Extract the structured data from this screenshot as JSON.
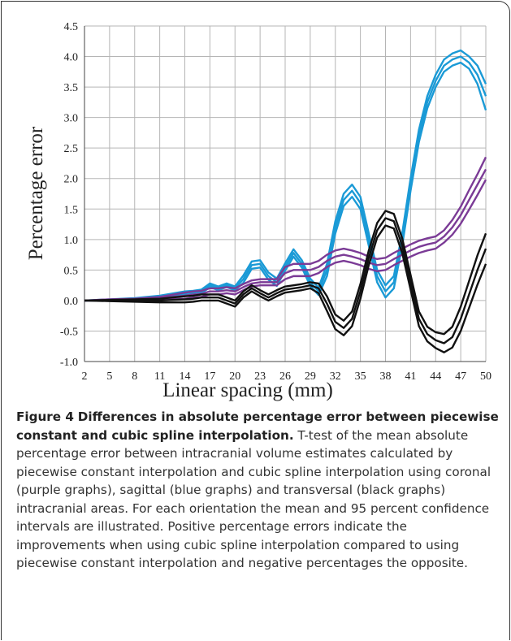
{
  "chart_data": {
    "type": "line",
    "xlabel": "Linear spacing (mm)",
    "ylabel": "Percentage error",
    "x": [
      2,
      5,
      8,
      11,
      14,
      15,
      16,
      17,
      18,
      19,
      20,
      21,
      22,
      23,
      24,
      25,
      26,
      27,
      28,
      29,
      30,
      31,
      32,
      33,
      34,
      35,
      36,
      37,
      38,
      39,
      40,
      41,
      42,
      43,
      44,
      45,
      46,
      47,
      48,
      49,
      50
    ],
    "xlim": [
      2,
      50
    ],
    "xticks": [
      2,
      5,
      8,
      11,
      14,
      17,
      20,
      23,
      26,
      29,
      32,
      35,
      38,
      41,
      44,
      47,
      50
    ],
    "ylim": [
      -1,
      4.5
    ],
    "yticks": [
      {
        "value": -1,
        "label": "-1.0"
      },
      -0.5,
      {
        "value": 0,
        "label": "0.0"
      },
      0.5,
      {
        "value": 1,
        "label": "1.0"
      },
      1.5,
      {
        "value": 2,
        "label": "2.0"
      },
      2.5,
      {
        "value": 3,
        "label": "3.0"
      },
      3.5,
      {
        "value": 4,
        "label": "4.0"
      },
      4.5
    ],
    "grid": true,
    "series": [
      {
        "color": "#1a9ad6",
        "values": [
          0,
          0.02,
          0.04,
          0.08,
          0.15,
          0.16,
          0.18,
          0.28,
          0.23,
          0.28,
          0.23,
          0.41,
          0.64,
          0.66,
          0.46,
          0.36,
          0.61,
          0.84,
          0.66,
          0.36,
          0.21,
          0.6,
          1.3,
          1.75,
          1.9,
          1.7,
          1.1,
          0.5,
          0.25,
          0.4,
          1.1,
          2.0,
          2.8,
          3.35,
          3.7,
          3.95,
          4.05,
          4.1,
          4.0,
          3.85,
          3.55
        ]
      },
      {
        "color": "#1a9ad6",
        "values": [
          0,
          0.01,
          0.03,
          0.06,
          0.12,
          0.13,
          0.15,
          0.25,
          0.2,
          0.25,
          0.2,
          0.35,
          0.58,
          0.6,
          0.4,
          0.3,
          0.55,
          0.78,
          0.6,
          0.3,
          0.15,
          0.5,
          1.2,
          1.65,
          1.8,
          1.6,
          1.0,
          0.4,
          0.15,
          0.3,
          1.0,
          1.9,
          2.7,
          3.25,
          3.6,
          3.85,
          3.95,
          4.0,
          3.9,
          3.7,
          3.35
        ]
      },
      {
        "color": "#1a9ad6",
        "values": [
          0,
          0,
          0.02,
          0.04,
          0.09,
          0.1,
          0.12,
          0.22,
          0.17,
          0.22,
          0.17,
          0.29,
          0.52,
          0.54,
          0.34,
          0.24,
          0.49,
          0.72,
          0.54,
          0.24,
          0.09,
          0.4,
          1.1,
          1.55,
          1.7,
          1.5,
          0.9,
          0.3,
          0.05,
          0.2,
          0.9,
          1.8,
          2.6,
          3.15,
          3.5,
          3.75,
          3.85,
          3.9,
          3.8,
          3.55,
          3.12
        ]
      },
      {
        "color": "#7b3b96",
        "values": [
          0,
          0.02,
          0.03,
          0.06,
          0.13,
          0.15,
          0.16,
          0.2,
          0.2,
          0.22,
          0.2,
          0.27,
          0.33,
          0.35,
          0.35,
          0.35,
          0.55,
          0.6,
          0.6,
          0.6,
          0.65,
          0.75,
          0.82,
          0.85,
          0.82,
          0.78,
          0.72,
          0.68,
          0.7,
          0.78,
          0.85,
          0.92,
          0.98,
          1.02,
          1.05,
          1.15,
          1.32,
          1.54,
          1.81,
          2.07,
          2.35
        ]
      },
      {
        "color": "#7b3b96",
        "values": [
          0,
          0.01,
          0.02,
          0.04,
          0.08,
          0.1,
          0.11,
          0.15,
          0.15,
          0.17,
          0.15,
          0.22,
          0.28,
          0.3,
          0.3,
          0.3,
          0.45,
          0.5,
          0.5,
          0.5,
          0.55,
          0.65,
          0.72,
          0.75,
          0.72,
          0.68,
          0.62,
          0.58,
          0.6,
          0.68,
          0.75,
          0.82,
          0.88,
          0.92,
          0.95,
          1.05,
          1.2,
          1.4,
          1.65,
          1.9,
          2.15
        ]
      },
      {
        "color": "#7b3b96",
        "values": [
          0,
          0,
          0.01,
          0.02,
          0.03,
          0.05,
          0.06,
          0.1,
          0.1,
          0.12,
          0.1,
          0.17,
          0.23,
          0.25,
          0.25,
          0.25,
          0.35,
          0.4,
          0.4,
          0.4,
          0.45,
          0.55,
          0.62,
          0.65,
          0.62,
          0.58,
          0.52,
          0.48,
          0.5,
          0.58,
          0.65,
          0.72,
          0.78,
          0.82,
          0.85,
          0.95,
          1.08,
          1.26,
          1.49,
          1.73,
          1.98
        ]
      },
      {
        "color": "#111111",
        "values": [
          0,
          0.01,
          0.02,
          0.03,
          0.07,
          0.08,
          0.1,
          0.1,
          0.1,
          0.05,
          0,
          0.15,
          0.25,
          0.17,
          0.1,
          0.17,
          0.23,
          0.25,
          0.27,
          0.3,
          0.28,
          0.07,
          -0.23,
          -0.33,
          -0.18,
          0.27,
          0.82,
          1.27,
          1.47,
          1.42,
          1.02,
          0.42,
          -0.18,
          -0.43,
          -0.52,
          -0.55,
          -0.43,
          -0.1,
          0.32,
          0.74,
          1.1
        ]
      },
      {
        "color": "#111111",
        "values": [
          0,
          0,
          0,
          0,
          0.02,
          0.03,
          0.05,
          0.05,
          0.05,
          0,
          -0.05,
          0.1,
          0.2,
          0.12,
          0.05,
          0.12,
          0.18,
          0.2,
          0.22,
          0.25,
          0.2,
          -0.05,
          -0.35,
          -0.45,
          -0.3,
          0.15,
          0.7,
          1.15,
          1.35,
          1.3,
          0.9,
          0.3,
          -0.3,
          -0.55,
          -0.65,
          -0.7,
          -0.6,
          -0.3,
          0.1,
          0.5,
          0.85
        ]
      },
      {
        "color": "#111111",
        "values": [
          0,
          -0.01,
          -0.02,
          -0.03,
          -0.03,
          -0.02,
          0,
          0,
          0,
          -0.05,
          -0.1,
          0.05,
          0.15,
          0.07,
          0,
          0.07,
          0.13,
          0.15,
          0.17,
          0.2,
          0.12,
          -0.17,
          -0.47,
          -0.57,
          -0.42,
          0.03,
          0.58,
          1.03,
          1.23,
          1.18,
          0.78,
          0.18,
          -0.42,
          -0.67,
          -0.78,
          -0.85,
          -0.77,
          -0.5,
          -0.12,
          0.26,
          0.6
        ]
      }
    ]
  },
  "caption": {
    "label": "Figure 4",
    "title": "Differences in absolute percentage error between piecewise constant and cubic spline interpolation.",
    "text": "T-test of the mean absolute percentage error between intracranial volume estimates calculated by piecewise constant interpolation and cubic spline interpolation using coronal (purple graphs), sagittal (blue graphs) and transversal (black graphs) intracranial areas. For each orientation the mean and 95 percent confidence intervals are illustrated. Positive percentage errors indicate the improvements when using cubic spline interpolation compared to using piecewise constant interpolation and negative percentages the opposite."
  }
}
